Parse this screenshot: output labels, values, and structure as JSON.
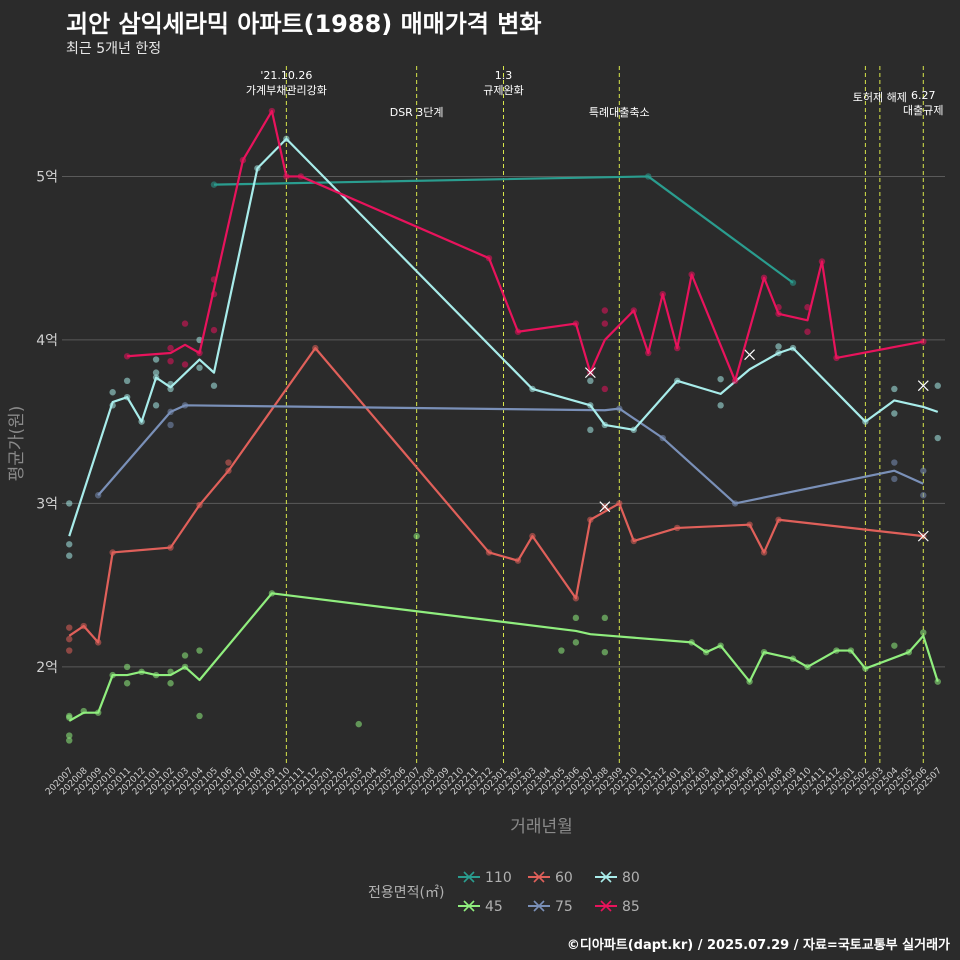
{
  "title": "괴안 삼익세라믹 아파트(1988) 매매가격 변화",
  "subtitle": "최근 5개년 한정",
  "caption": "©디아파트(dapt.kr) / 2025.07.29 / 자료=국토교통부 실거래가",
  "chart_data": {
    "type": "line",
    "xlabel": "거래년월",
    "ylabel": "평균가(원)",
    "y_ticks": [
      {
        "value": 2,
        "label": "2억"
      },
      {
        "value": 3,
        "label": "3억"
      },
      {
        "value": 4,
        "label": "4억"
      },
      {
        "value": 5,
        "label": "5억"
      }
    ],
    "ylim": [
      1.4,
      5.7
    ],
    "months": [
      "202007",
      "202008",
      "202009",
      "202010",
      "202011",
      "202012",
      "202101",
      "202102",
      "202103",
      "202104",
      "202105",
      "202106",
      "202107",
      "202108",
      "202109",
      "202110",
      "202111",
      "202112",
      "202201",
      "202202",
      "202203",
      "202204",
      "202205",
      "202206",
      "202207",
      "202208",
      "202209",
      "202210",
      "202211",
      "202212",
      "202301",
      "202302",
      "202303",
      "202304",
      "202305",
      "202306",
      "202307",
      "202308",
      "202309",
      "202310",
      "202311",
      "202312",
      "202401",
      "202402",
      "202403",
      "202404",
      "202405",
      "202406",
      "202407",
      "202408",
      "202409",
      "202410",
      "202411",
      "202412",
      "202501",
      "202502",
      "202503",
      "202504",
      "202505",
      "202506",
      "202507"
    ],
    "events": [
      {
        "month": "202110",
        "label": "'21.10.26\n가계부채관리강화",
        "level": 1
      },
      {
        "month": "202207",
        "label": "DSR 3단계",
        "level": 2
      },
      {
        "month": "202301",
        "label": "1.3\n규제완화",
        "level": 1
      },
      {
        "month": "202309",
        "label": "특례대출축소",
        "level": 2
      },
      {
        "month": "202502",
        "label": "",
        "level": 0
      },
      {
        "month": "202503",
        "label": "토허제 해제",
        "level": 0
      },
      {
        "month": "202506",
        "label": "6.27\n대출규제",
        "level": 3
      }
    ],
    "legend": {
      "title": "전용면적(㎡)",
      "position": "bottom",
      "items": [
        {
          "name": "110",
          "color": "#2a9d8f"
        },
        {
          "name": "45",
          "color": "#90ee7e"
        },
        {
          "name": "60",
          "color": "#e0605a"
        },
        {
          "name": "75",
          "color": "#7a90b8"
        },
        {
          "name": "80",
          "color": "#a8ecea"
        },
        {
          "name": "85",
          "color": "#e8135c"
        }
      ]
    },
    "series": [
      {
        "name": "110",
        "color": "#2a9d8f",
        "x": [
          "202105",
          "202311",
          "202409"
        ],
        "y": [
          4.95,
          5.0,
          4.35
        ],
        "points_x": [
          "202105",
          "202311",
          "202409"
        ],
        "points_y": [
          4.95,
          5.0,
          4.35
        ]
      },
      {
        "name": "45",
        "color": "#90ee7e",
        "x": [
          "202007",
          "202008",
          "202009",
          "202010",
          "202011",
          "202012",
          "202101",
          "202102",
          "202103",
          "202104",
          "202109",
          "202306",
          "202307",
          "202402",
          "202403",
          "202404",
          "202406",
          "202407",
          "202409",
          "202410",
          "202412",
          "202501",
          "202502",
          "202505",
          "202506",
          "202507"
        ],
        "y": [
          1.67,
          1.72,
          1.72,
          1.95,
          1.95,
          1.97,
          1.95,
          1.95,
          2.0,
          1.92,
          2.45,
          2.22,
          2.2,
          2.15,
          2.09,
          2.13,
          1.91,
          2.09,
          2.05,
          2.0,
          2.1,
          2.1,
          1.99,
          2.09,
          2.19,
          1.91
        ],
        "points_x": [
          "202007",
          "202007",
          "202007",
          "202007",
          "202008",
          "202009",
          "202010",
          "202011",
          "202011",
          "202012",
          "202101",
          "202102",
          "202102",
          "202103",
          "202103",
          "202104",
          "202104",
          "202109",
          "202203",
          "202207",
          "202305",
          "202306",
          "202306",
          "202308",
          "202308",
          "202402",
          "202403",
          "202404",
          "202406",
          "202407",
          "202409",
          "202410",
          "202412",
          "202501",
          "202502",
          "202504",
          "202505",
          "202506",
          "202507"
        ],
        "points_y": [
          1.69,
          1.7,
          1.55,
          1.58,
          1.73,
          1.72,
          1.95,
          2.0,
          1.9,
          1.97,
          1.95,
          1.97,
          1.9,
          2.07,
          2.0,
          2.1,
          1.7,
          2.45,
          1.65,
          2.8,
          2.1,
          2.3,
          2.15,
          2.3,
          2.09,
          2.15,
          2.09,
          2.13,
          1.91,
          2.09,
          2.05,
          2.0,
          2.1,
          2.1,
          1.99,
          2.13,
          2.09,
          2.21,
          1.91
        ]
      },
      {
        "name": "60",
        "color": "#e0605a",
        "x": [
          "202007",
          "202008",
          "202009",
          "202010",
          "202102",
          "202104",
          "202106",
          "202112",
          "202212",
          "202302",
          "202303",
          "202306",
          "202307",
          "202309",
          "202310",
          "202401",
          "202406",
          "202407",
          "202408",
          "202506"
        ],
        "y": [
          2.19,
          2.25,
          2.15,
          2.7,
          2.73,
          2.99,
          3.2,
          3.95,
          2.7,
          2.65,
          2.8,
          2.42,
          2.9,
          3.0,
          2.77,
          2.85,
          2.87,
          2.7,
          2.9,
          2.8
        ],
        "points_x": [
          "202007",
          "202007",
          "202007",
          "202008",
          "202009",
          "202010",
          "202102",
          "202104",
          "202106",
          "202106",
          "202112",
          "202212",
          "202302",
          "202303",
          "202306",
          "202307",
          "202308",
          "202309",
          "202310",
          "202401",
          "202406",
          "202407",
          "202408",
          "202506"
        ],
        "points_y": [
          2.24,
          2.17,
          2.1,
          2.25,
          2.15,
          2.7,
          2.73,
          2.99,
          3.2,
          3.25,
          3.95,
          2.7,
          2.65,
          2.8,
          2.42,
          2.9,
          2.98,
          3.0,
          2.77,
          2.85,
          2.87,
          2.7,
          2.9,
          2.8
        ],
        "crosses": [
          {
            "x": "202308",
            "y": 2.98
          },
          {
            "x": "202506",
            "y": 2.8
          }
        ]
      },
      {
        "name": "75",
        "color": "#7a90b8",
        "x": [
          "202009",
          "202102",
          "202103",
          "202308",
          "202309",
          "202312",
          "202405",
          "202504",
          "202506"
        ],
        "y": [
          3.05,
          3.56,
          3.6,
          3.57,
          3.58,
          3.4,
          3.0,
          3.2,
          3.12
        ],
        "points_x": [
          "202009",
          "202102",
          "202102",
          "202103",
          "202309",
          "202312",
          "202405",
          "202504",
          "202504",
          "202506",
          "202506"
        ],
        "points_y": [
          3.05,
          3.48,
          3.56,
          3.6,
          3.58,
          3.4,
          3.0,
          3.25,
          3.15,
          3.2,
          3.05
        ]
      },
      {
        "name": "80",
        "color": "#a8ecea",
        "x": [
          "202007",
          "202010",
          "202011",
          "202012",
          "202101",
          "202102",
          "202104",
          "202105",
          "202108",
          "202110",
          "202303",
          "202307",
          "202308",
          "202310",
          "202401",
          "202404",
          "202406",
          "202408",
          "202409",
          "202502",
          "202504",
          "202506",
          "202507"
        ],
        "y": [
          2.8,
          3.62,
          3.65,
          3.5,
          3.77,
          3.71,
          3.88,
          3.8,
          5.05,
          5.23,
          3.7,
          3.6,
          3.48,
          3.45,
          3.75,
          3.67,
          3.82,
          3.92,
          3.95,
          3.5,
          3.63,
          3.59,
          3.56
        ],
        "points_x": [
          "202007",
          "202007",
          "202007",
          "202010",
          "202010",
          "202011",
          "202011",
          "202012",
          "202101",
          "202101",
          "202101",
          "202101",
          "202102",
          "202102",
          "202104",
          "202104",
          "202105",
          "202108",
          "202110",
          "202303",
          "202307",
          "202307",
          "202307",
          "202308",
          "202310",
          "202401",
          "202404",
          "202404",
          "202408",
          "202408",
          "202409",
          "202502",
          "202504",
          "202504",
          "202507",
          "202507"
        ],
        "points_y": [
          3.0,
          2.75,
          2.68,
          3.68,
          3.6,
          3.75,
          3.65,
          3.5,
          3.88,
          3.8,
          3.77,
          3.6,
          3.7,
          3.73,
          4.0,
          3.83,
          3.72,
          5.05,
          5.23,
          3.7,
          3.75,
          3.6,
          3.45,
          3.48,
          3.45,
          3.75,
          3.6,
          3.76,
          3.96,
          3.92,
          3.95,
          3.5,
          3.7,
          3.55,
          3.72,
          3.4
        ],
        "crosses": [
          {
            "x": "202406",
            "y": 3.91
          },
          {
            "x": "202506",
            "y": 3.72
          }
        ]
      },
      {
        "name": "85",
        "color": "#e8135c",
        "x": [
          "202011",
          "202102",
          "202103",
          "202104",
          "202107",
          "202109",
          "202110",
          "202111",
          "202212",
          "202302",
          "202306",
          "202307",
          "202308",
          "202310",
          "202311",
          "202312",
          "202401",
          "202402",
          "202405",
          "202407",
          "202408",
          "202410",
          "202411",
          "202412",
          "202506"
        ],
        "y": [
          3.9,
          3.92,
          3.97,
          3.92,
          5.1,
          5.4,
          5.0,
          5.0,
          4.5,
          4.05,
          4.1,
          3.8,
          4.0,
          4.18,
          3.92,
          4.28,
          3.95,
          4.4,
          3.75,
          4.38,
          4.16,
          4.12,
          4.48,
          3.89,
          3.99
        ],
        "points_x": [
          "202011",
          "202102",
          "202102",
          "202103",
          "202103",
          "202104",
          "202105",
          "202105",
          "202105",
          "202107",
          "202109",
          "202110",
          "202111",
          "202212",
          "202302",
          "202306",
          "202307",
          "202308",
          "202308",
          "202308",
          "202310",
          "202311",
          "202312",
          "202401",
          "202402",
          "202405",
          "202407",
          "202408",
          "202408",
          "202410",
          "202410",
          "202411",
          "202412",
          "202506"
        ],
        "points_y": [
          3.9,
          3.95,
          3.87,
          4.1,
          3.85,
          3.92,
          4.37,
          4.28,
          4.06,
          5.1,
          5.4,
          5.0,
          5.0,
          4.5,
          4.05,
          4.1,
          3.8,
          4.18,
          4.1,
          3.7,
          4.18,
          3.92,
          4.28,
          3.95,
          4.4,
          3.75,
          4.38,
          4.2,
          4.16,
          4.2,
          4.05,
          4.48,
          3.89,
          3.99
        ],
        "crosses": [
          {
            "x": "202307",
            "y": 3.8
          }
        ]
      }
    ]
  }
}
